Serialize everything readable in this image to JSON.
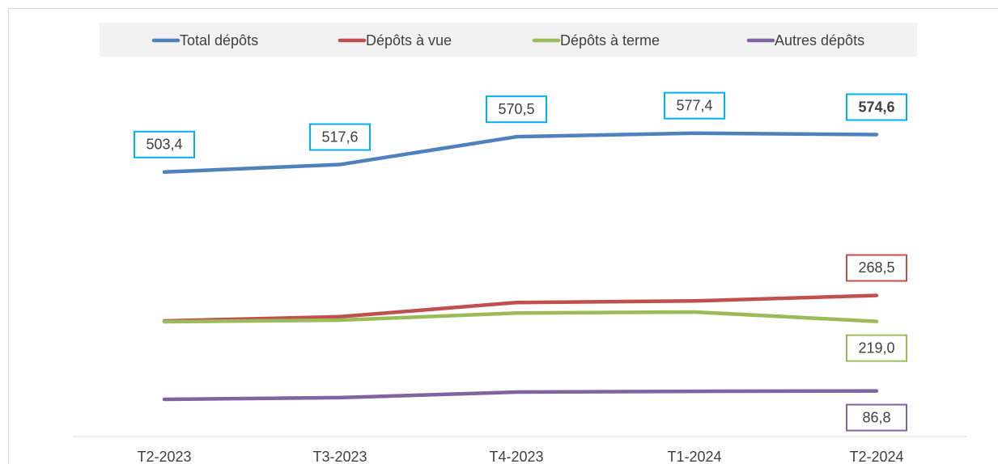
{
  "chart_data": {
    "type": "line",
    "categories": [
      "T2-2023",
      "T3-2023",
      "T4-2023",
      "T1-2024",
      "T2-2024"
    ],
    "series": [
      {
        "name": "Total dépôts",
        "color": "#4f81bd",
        "label_color": "#00b0f0",
        "values": [
          503.4,
          517.6,
          570.5,
          577.4,
          574.6
        ],
        "value_labels": [
          "503,4",
          "517,6",
          "570,5",
          "577,4",
          "574,6"
        ]
      },
      {
        "name": "Dépôts à vue",
        "color": "#c0504d",
        "label_color": "#c0504d",
        "values": [
          220,
          228,
          255,
          258,
          268.5
        ],
        "value_labels": [
          null,
          null,
          null,
          null,
          "268,5"
        ]
      },
      {
        "name": "Dépôts à terme",
        "color": "#9bbb59",
        "label_color": "#9bbb59",
        "values": [
          218.5,
          221.5,
          235,
          237,
          219.0
        ],
        "value_labels": [
          null,
          null,
          null,
          null,
          "219,0"
        ]
      },
      {
        "name": "Autres dépôts",
        "color": "#8064a2",
        "label_color": "#8064a2",
        "values": [
          70.8,
          74,
          84.6,
          86,
          86.8
        ],
        "value_labels": [
          null,
          null,
          null,
          null,
          "86,8"
        ]
      }
    ],
    "ylim": [
      0,
      700
    ],
    "legend": "top"
  }
}
